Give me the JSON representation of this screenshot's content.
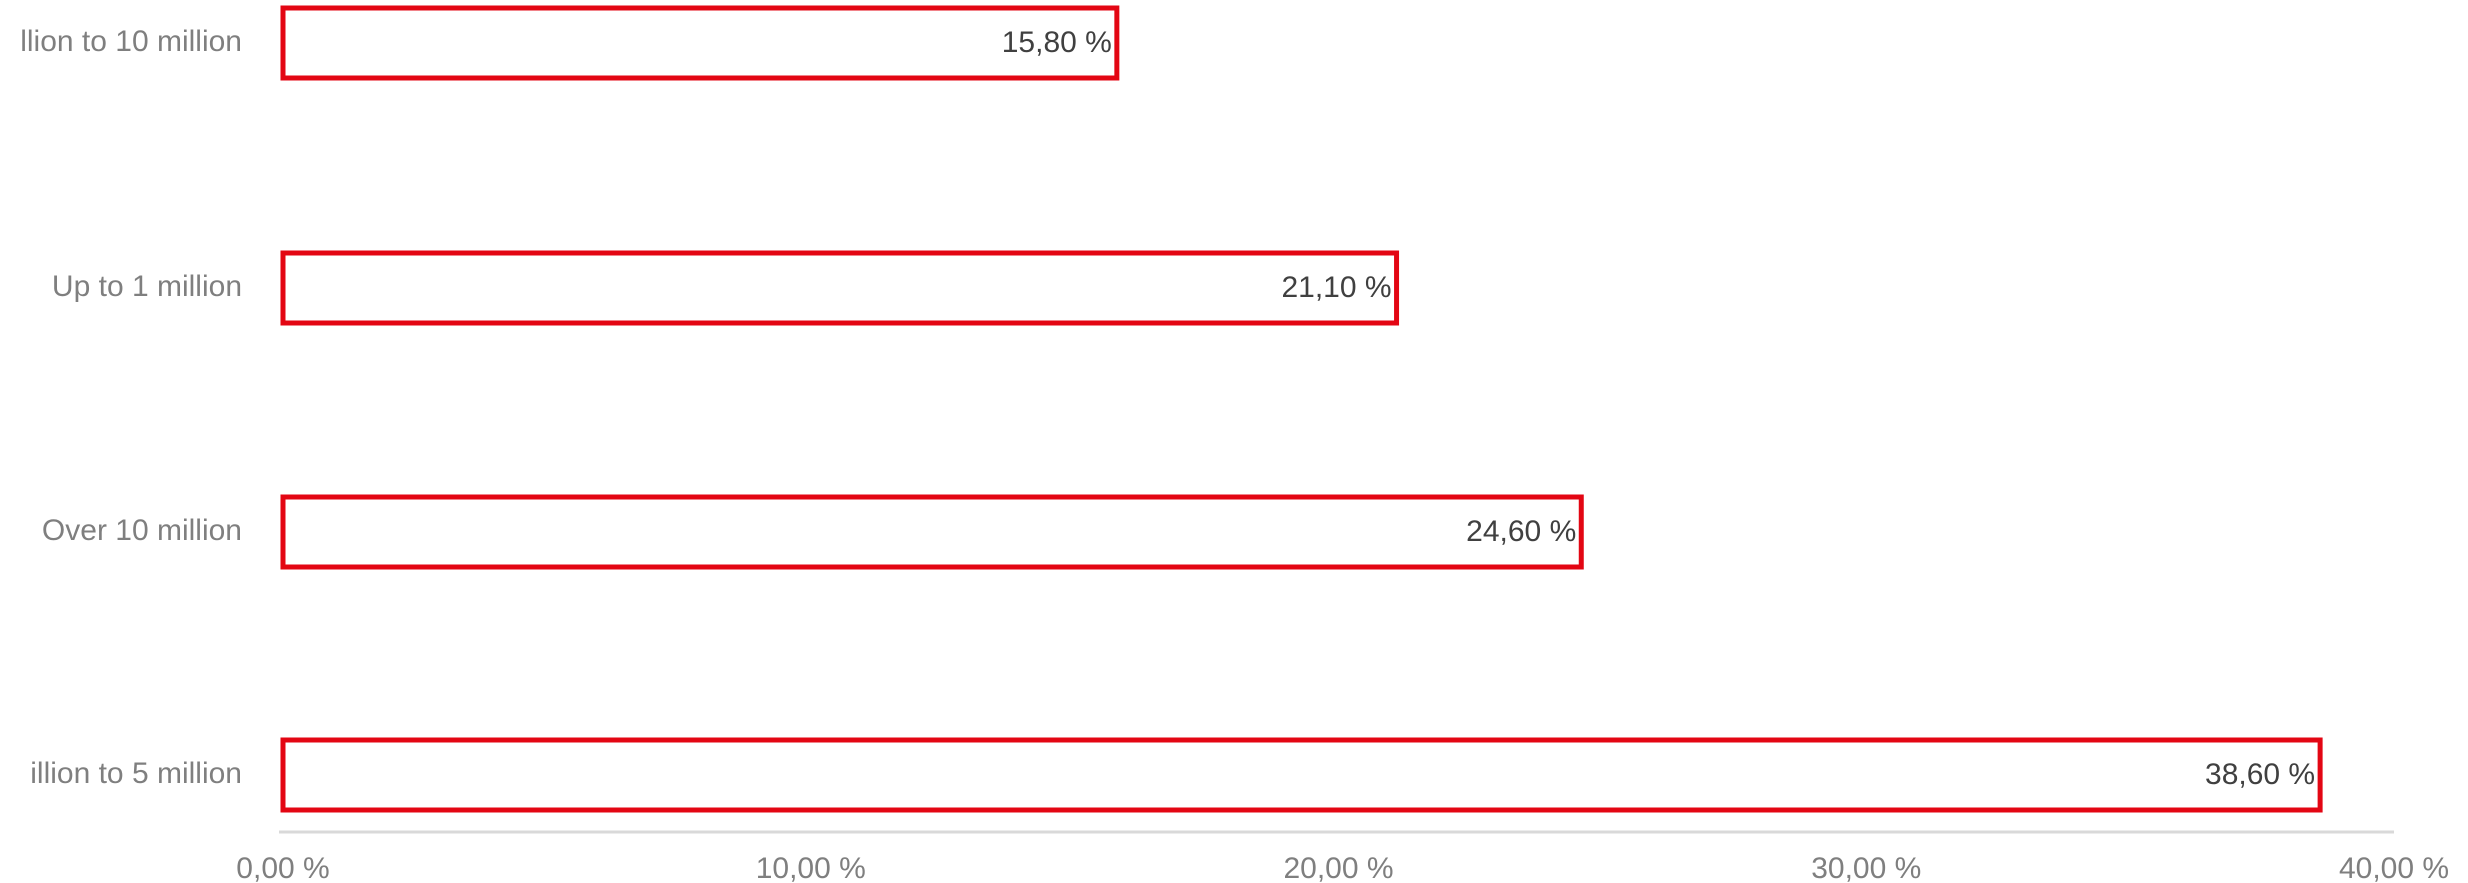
{
  "chart_data": {
    "type": "bar",
    "orientation": "horizontal",
    "categories": [
      "llion to 10 million",
      "Up to 1 million",
      "Over 10 million",
      "illion to 5 million"
    ],
    "values": [
      15.8,
      21.1,
      24.6,
      38.6
    ],
    "value_labels": [
      "15,80 %",
      "21,10 %",
      "24,60 %",
      "38,60 %"
    ],
    "color": "#e30613",
    "xlim": [
      0,
      40
    ],
    "xticks": [
      {
        "value": 0,
        "label": "0,00 %"
      },
      {
        "value": 10,
        "label": "10,00 %"
      },
      {
        "value": 20,
        "label": "20,00 %"
      },
      {
        "value": 30,
        "label": "30,00 %"
      },
      {
        "value": 40,
        "label": "40,00 %"
      }
    ],
    "grid": false
  }
}
